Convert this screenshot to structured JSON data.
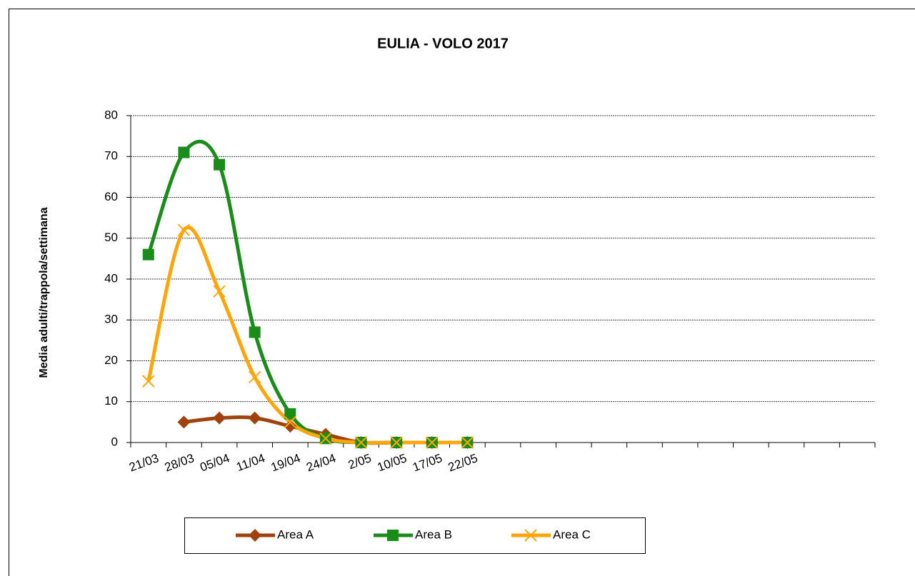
{
  "chart_data": {
    "type": "line",
    "title": "EULIA - VOLO 2017",
    "y_label": "Media adulti/trappola/settimana",
    "categories": [
      "21/03",
      "28/03",
      "05/04",
      "11/04",
      "19/04",
      "24/04",
      "2/05",
      "10/05",
      "17/05",
      "22/05",
      null,
      null,
      null,
      null,
      null,
      null,
      null,
      null,
      null,
      null,
      null
    ],
    "series": [
      {
        "name": "Area A",
        "color": "#a0420e",
        "marker": "diamond",
        "values": [
          null,
          5,
          6,
          6,
          4,
          2,
          0,
          0,
          0,
          0,
          null,
          null,
          null,
          null,
          null,
          null,
          null,
          null,
          null,
          null,
          null
        ]
      },
      {
        "name": "Area B",
        "color": "#1a8c1a",
        "marker": "square",
        "values": [
          46,
          71,
          68,
          27,
          7,
          1,
          0,
          0,
          0,
          0,
          null,
          null,
          null,
          null,
          null,
          null,
          null,
          null,
          null,
          null,
          null
        ]
      },
      {
        "name": "Area C",
        "color": "#ffa50a",
        "marker": "cross",
        "values": [
          15,
          52,
          37,
          16,
          5,
          1,
          0,
          0,
          0,
          0,
          null,
          null,
          null,
          null,
          null,
          null,
          null,
          null,
          null,
          null,
          null
        ]
      }
    ],
    "ylim": [
      0,
      80
    ],
    "yticks": [
      0,
      10,
      20,
      30,
      40,
      50,
      60,
      70,
      80
    ],
    "grid": true,
    "smooth": true,
    "legend": "bottom"
  }
}
